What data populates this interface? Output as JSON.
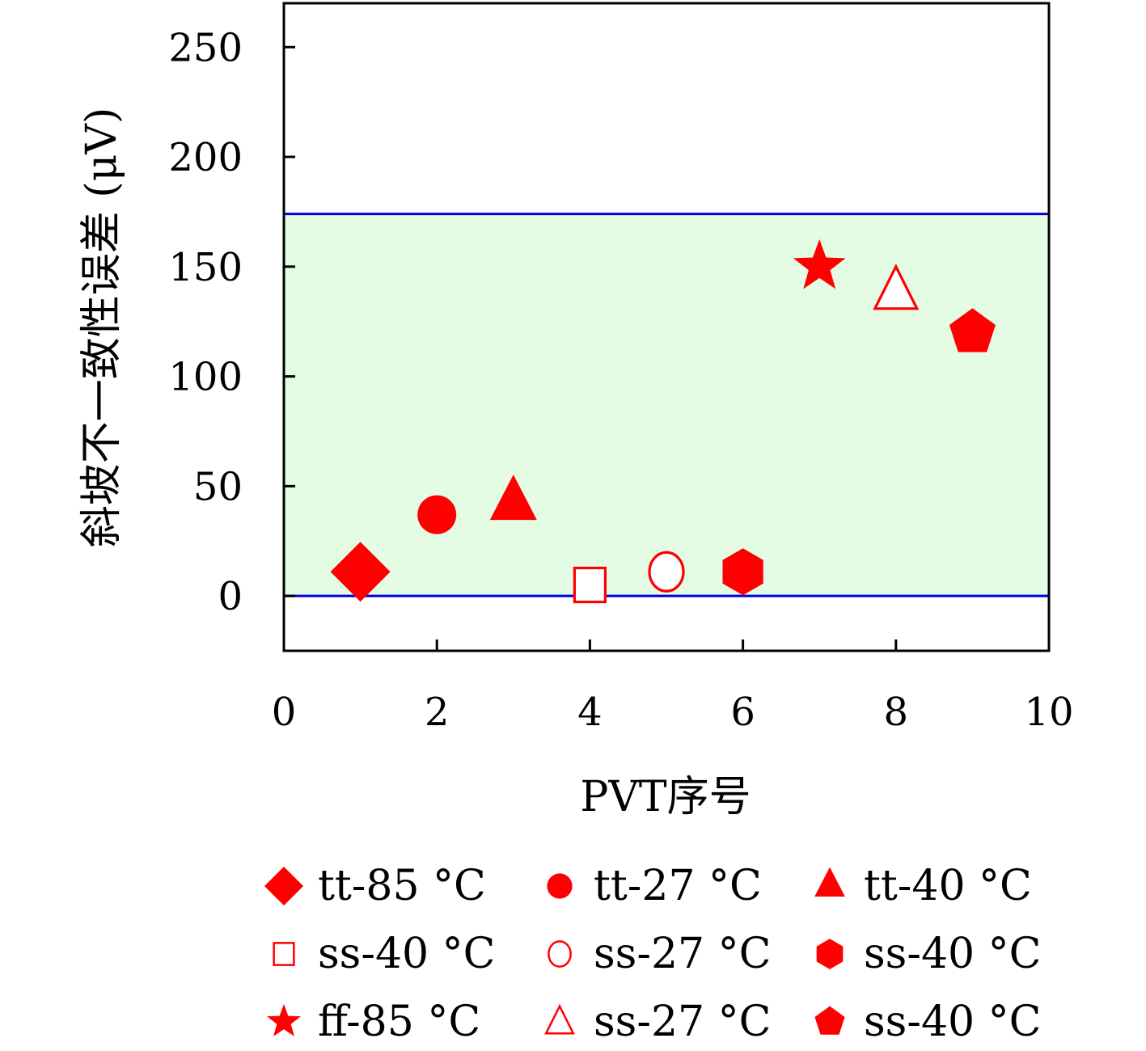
{
  "chart_data": {
    "type": "scatter",
    "xlabel": "PVT序号",
    "ylabel": "斜坡不一致性误差 (μV)",
    "xlim": [
      0,
      10
    ],
    "ylim": [
      -25,
      270
    ],
    "x_ticks": [
      "0",
      "2",
      "4",
      "6",
      "8",
      "10"
    ],
    "y_ticks": [
      "0",
      "50",
      "100",
      "150",
      "200",
      "250"
    ],
    "band": {
      "y_low": 0,
      "y_high": 174,
      "fill": "#e4fbe4",
      "line_color": "#0000dd"
    },
    "marker_color": "#ff0000",
    "series": [
      {
        "name": "tt-85 °C",
        "marker": "diamond-filled",
        "x": 1,
        "y": 11
      },
      {
        "name": "tt-27 °C",
        "marker": "circle-filled",
        "x": 2,
        "y": 37
      },
      {
        "name": "tt-40 °C",
        "marker": "triangle-filled",
        "x": 3,
        "y": 42
      },
      {
        "name": "ss-40 °C",
        "marker": "square-open",
        "x": 4,
        "y": 5
      },
      {
        "name": "ss-27 °C",
        "marker": "circle-open",
        "x": 5,
        "y": 11
      },
      {
        "name": "ss-40 °C",
        "marker": "hexagon-filled",
        "x": 6,
        "y": 11
      },
      {
        "name": "ff-85 °C",
        "marker": "star-filled",
        "x": 7,
        "y": 150
      },
      {
        "name": "ss-27 °C",
        "marker": "triangle-open",
        "x": 8,
        "y": 139
      },
      {
        "name": "ss-40 °C",
        "marker": "pentagon-filled",
        "x": 9,
        "y": 120
      }
    ],
    "grid": false,
    "legend_placement": "bottom"
  }
}
